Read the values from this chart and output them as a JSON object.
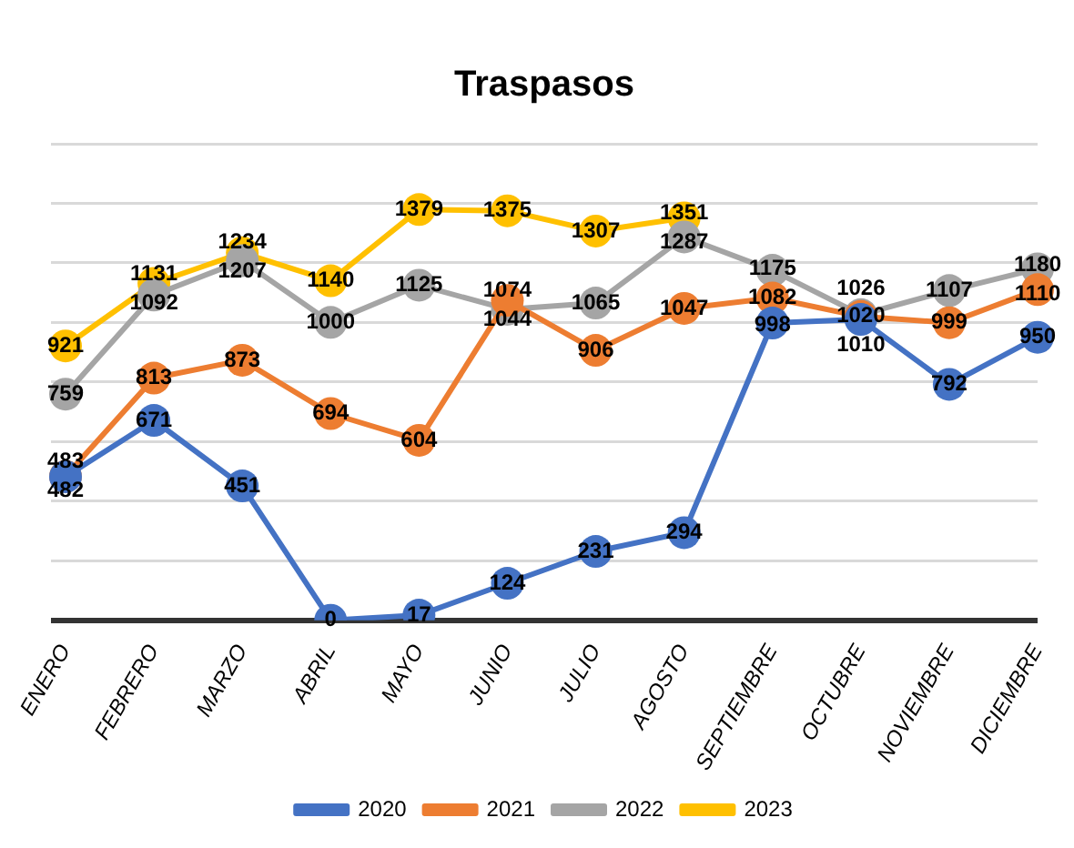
{
  "chart_data": {
    "type": "line",
    "title": "Traspasos",
    "categories": [
      "ENERO",
      "FEBRERO",
      "MARZO",
      "ABRIL",
      "MAYO",
      "JUNIO",
      "JULIO",
      "AGOSTO",
      "SEPTIEMBRE",
      "OCTUBRE",
      "NOVIEMBRE",
      "DICIEMBRE"
    ],
    "series": [
      {
        "name": "2020",
        "color": "#4472c4",
        "values": [
          482,
          671,
          451,
          0,
          17,
          124,
          231,
          294,
          998,
          1010,
          792,
          950
        ]
      },
      {
        "name": "2021",
        "color": "#ed7d31",
        "values": [
          483,
          813,
          873,
          694,
          604,
          1074,
          906,
          1047,
          1082,
          1020,
          999,
          1110
        ]
      },
      {
        "name": "2022",
        "color": "#a5a5a5",
        "values": [
          759,
          1092,
          1207,
          1000,
          1125,
          1044,
          1065,
          1287,
          1175,
          1026,
          1107,
          1180
        ]
      },
      {
        "name": "2023",
        "color": "#ffc000",
        "values": [
          921,
          1131,
          1234,
          1140,
          1379,
          1375,
          1307,
          1351,
          null,
          null,
          null,
          null
        ]
      }
    ],
    "ylim": [
      0,
      1600
    ],
    "yticks": [
      0,
      200,
      400,
      600,
      800,
      1000,
      1200,
      1400,
      1600
    ],
    "tick_labels": "x",
    "grid": "y",
    "legend": "bottom",
    "marker": "circle",
    "line_style": "solid",
    "data_labels": true
  }
}
